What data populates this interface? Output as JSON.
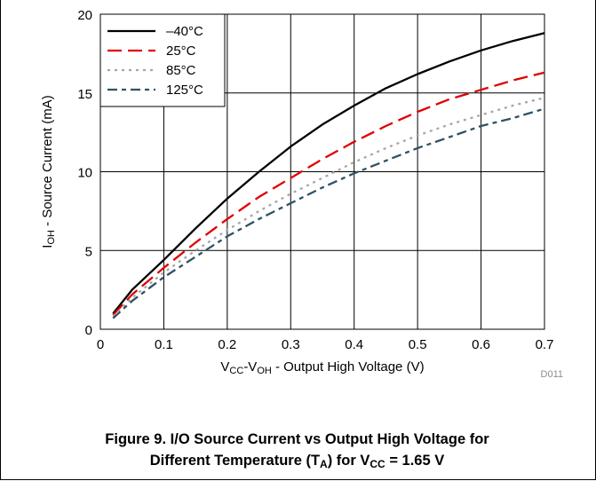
{
  "chart_data": {
    "type": "line",
    "xlabel": {
      "parts": [
        {
          "t": "V"
        },
        {
          "t": "CC",
          "sub": true
        },
        {
          "t": "-V"
        },
        {
          "t": "OH",
          "sub": true
        },
        {
          "t": " - Output High Voltage (V)"
        }
      ]
    },
    "ylabel": {
      "parts": [
        {
          "t": "I"
        },
        {
          "t": "OH",
          "sub": true
        },
        {
          "t": " - Source Current (mA)"
        }
      ]
    },
    "xlim": [
      0,
      0.7
    ],
    "ylim": [
      0,
      20
    ],
    "xticks": [
      0,
      0.1,
      0.2,
      0.3,
      0.4,
      0.5,
      0.6,
      0.7
    ],
    "xtick_labels": [
      "0",
      "0.1",
      "0.2",
      "0.3",
      "0.4",
      "0.5",
      "0.6",
      "0.7"
    ],
    "yticks": [
      0,
      5,
      10,
      15,
      20
    ],
    "ytick_labels": [
      "0",
      "5",
      "10",
      "15",
      "20"
    ],
    "grid": true,
    "legend_position": "top-left",
    "figure_id": "D011",
    "series": [
      {
        "name": "–40°C",
        "color": "#000000",
        "dash": "solid",
        "x": [
          0.02,
          0.05,
          0.1,
          0.15,
          0.2,
          0.25,
          0.3,
          0.35,
          0.4,
          0.45,
          0.5,
          0.55,
          0.6,
          0.65,
          0.7
        ],
        "y": [
          1.0,
          2.5,
          4.4,
          6.4,
          8.3,
          10.0,
          11.6,
          13.0,
          14.2,
          15.3,
          16.2,
          17.0,
          17.7,
          18.3,
          18.8
        ]
      },
      {
        "name": "25°C",
        "color": "#e00000",
        "dash": "long",
        "x": [
          0.02,
          0.05,
          0.1,
          0.15,
          0.2,
          0.25,
          0.3,
          0.35,
          0.4,
          0.45,
          0.5,
          0.55,
          0.6,
          0.65,
          0.7
        ],
        "y": [
          0.9,
          2.2,
          3.9,
          5.5,
          7.0,
          8.4,
          9.6,
          10.8,
          11.9,
          12.9,
          13.8,
          14.6,
          15.2,
          15.8,
          16.3
        ]
      },
      {
        "name": "85°C",
        "color": "#a6a6a6",
        "dash": "dot",
        "x": [
          0.02,
          0.05,
          0.1,
          0.15,
          0.2,
          0.25,
          0.3,
          0.35,
          0.4,
          0.45,
          0.5,
          0.55,
          0.6,
          0.65,
          0.7
        ],
        "y": [
          0.8,
          2.0,
          3.6,
          5.0,
          6.3,
          7.5,
          8.6,
          9.6,
          10.6,
          11.5,
          12.3,
          13.0,
          13.6,
          14.2,
          14.7
        ]
      },
      {
        "name": "125°C",
        "color": "#2e5266",
        "dash": "dashdot",
        "x": [
          0.02,
          0.05,
          0.1,
          0.15,
          0.2,
          0.25,
          0.3,
          0.35,
          0.4,
          0.45,
          0.5,
          0.55,
          0.6,
          0.65,
          0.7
        ],
        "y": [
          0.7,
          1.8,
          3.3,
          4.6,
          5.9,
          7.0,
          8.0,
          9.0,
          9.9,
          10.7,
          11.5,
          12.2,
          12.9,
          13.4,
          14.0
        ]
      }
    ]
  },
  "caption": {
    "line1": "Figure 9. I/O Source Current vs Output High Voltage for",
    "line2_parts": [
      {
        "t": "Different Temperature (T"
      },
      {
        "t": "A",
        "sub": true
      },
      {
        "t": ") for V"
      },
      {
        "t": "CC",
        "sub": true
      },
      {
        "t": " = 1.65 V"
      }
    ]
  }
}
